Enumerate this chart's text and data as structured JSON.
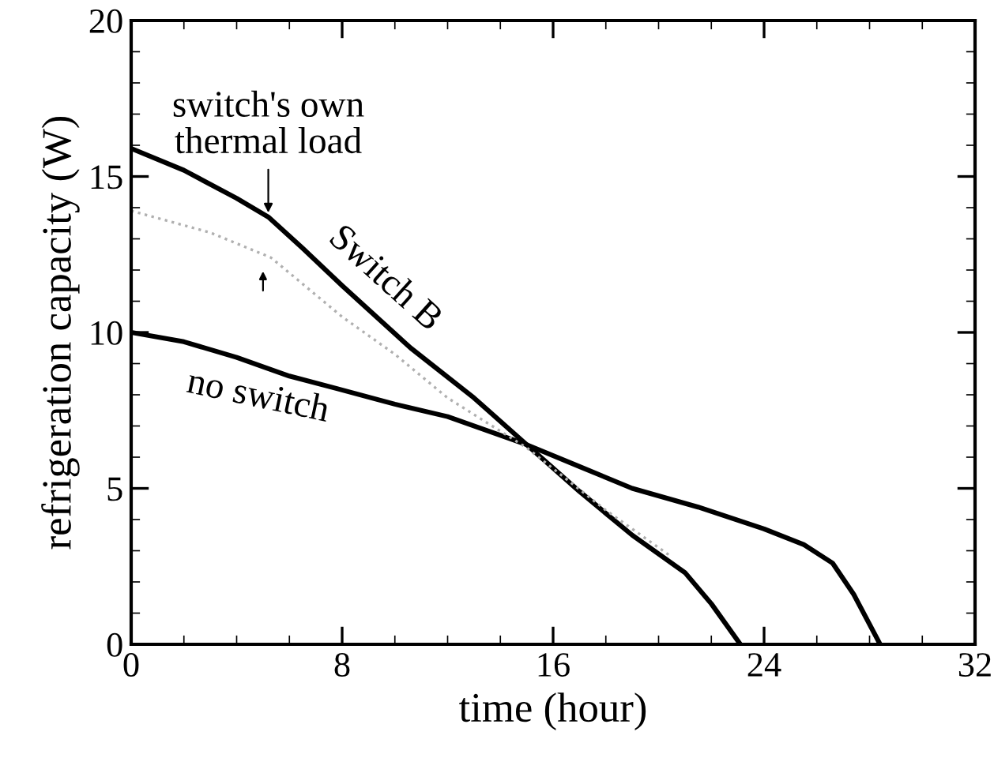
{
  "chart_data": {
    "type": "line",
    "xlabel": "time (hour)",
    "ylabel": "refrigeration capacity (W)",
    "xlim": [
      0,
      32
    ],
    "xticks": [
      0,
      8,
      16,
      24,
      32
    ],
    "ylim": [
      0,
      20
    ],
    "yticks": [
      0,
      5,
      10,
      15,
      20
    ],
    "grid": false,
    "marker": "none",
    "series": [
      {
        "name": "Switch B",
        "color": "#000000",
        "line_style": "solid",
        "x": [
          0,
          2,
          4,
          5.2,
          6.5,
          8,
          10.6,
          13,
          15,
          17,
          19,
          21,
          22,
          23.1
        ],
        "values": [
          15.9,
          15.2,
          14.3,
          13.7,
          12.7,
          11.5,
          9.5,
          7.9,
          6.4,
          4.9,
          3.5,
          2.3,
          1.3,
          0
        ]
      },
      {
        "name": "no switch",
        "color": "#000000",
        "line_style": "solid",
        "x": [
          0,
          2,
          4,
          6,
          7.8,
          10,
          12,
          15,
          17,
          19,
          21.5,
          24,
          25.5,
          26.6,
          27.4,
          28.4
        ],
        "values": [
          10.0,
          9.7,
          9.2,
          8.6,
          8.2,
          7.7,
          7.3,
          6.4,
          5.7,
          5.0,
          4.4,
          3.7,
          3.2,
          2.6,
          1.6,
          0
        ]
      },
      {
        "color": "#b0b0b0",
        "line_style": "dotted",
        "x": [
          0,
          3,
          5.3,
          8,
          10,
          12,
          15,
          18,
          20.5
        ],
        "values": [
          13.9,
          13.2,
          12.4,
          10.5,
          9.3,
          7.9,
          6.3,
          4.3,
          2.8
        ]
      }
    ],
    "annotations": [
      {
        "text": "switch's own\nthermal load",
        "x": 5.2,
        "y": 13.7
      }
    ]
  }
}
